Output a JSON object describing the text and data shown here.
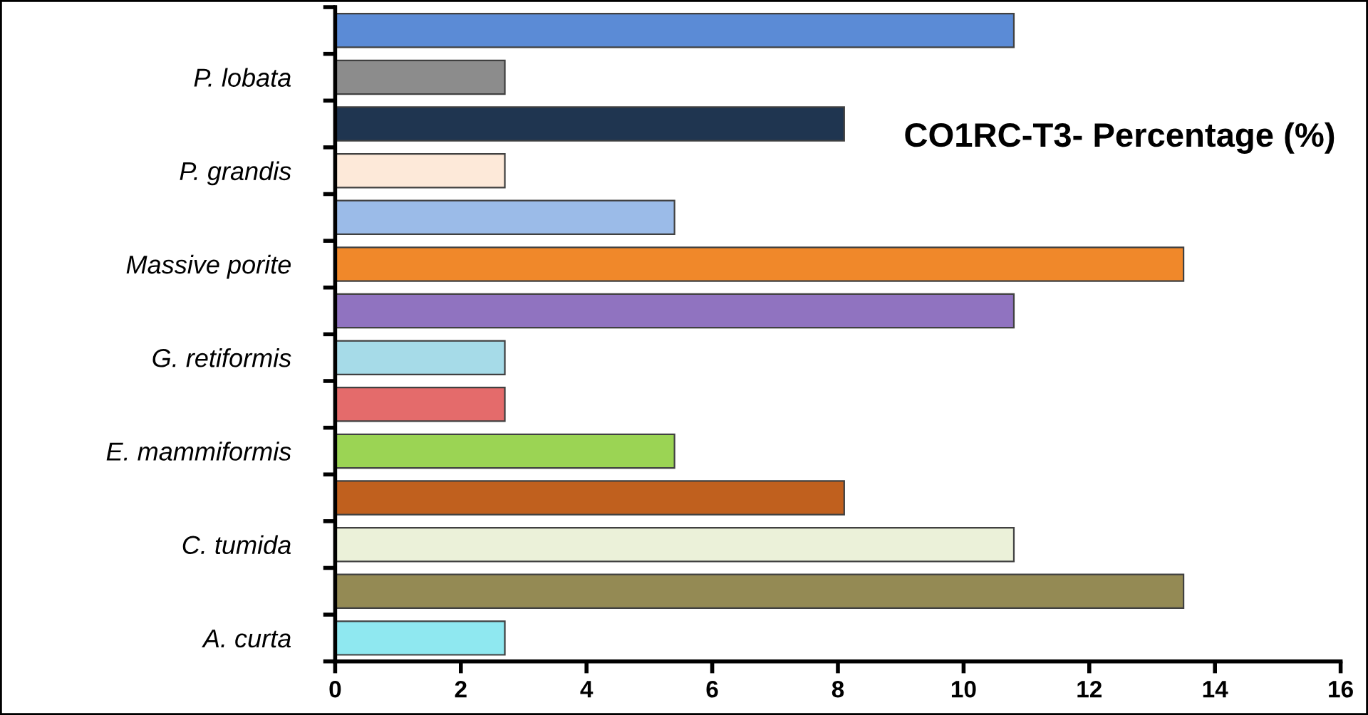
{
  "chart_data": {
    "type": "bar",
    "orientation": "horizontal",
    "title": "CO1RC-T3- Percentage (%)",
    "categories": [
      null,
      "P. lobata",
      null,
      "P. grandis",
      null,
      "Massive porite",
      null,
      "G. retiformis",
      null,
      "E. mammiformis",
      null,
      "C. tumida",
      null,
      "A. curta"
    ],
    "values": [
      10.8,
      2.7,
      8.1,
      2.7,
      5.4,
      13.5,
      10.8,
      2.7,
      2.7,
      5.4,
      8.1,
      10.8,
      13.5,
      2.7
    ],
    "colors": [
      "#5b8bd6",
      "#8c8c8c",
      "#1f3550",
      "#fde9d9",
      "#9bbbe8",
      "#f0882a",
      "#9073c0",
      "#a6dbe8",
      "#e46b6b",
      "#9bd454",
      "#c0601e",
      "#ebf1d9",
      "#948a54",
      "#8fe8f0"
    ],
    "xlim": [
      0,
      16
    ],
    "xticks": [
      0,
      2,
      4,
      6,
      8,
      10,
      12,
      14,
      16
    ],
    "grid": false,
    "legend": false
  }
}
